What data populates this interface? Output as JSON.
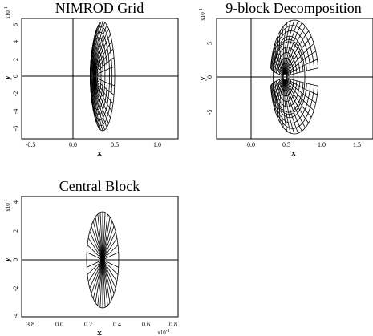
{
  "panels": [
    {
      "id": "nimrod-grid",
      "title": "NIMROD Grid",
      "xlabel": "x",
      "ylabel": "y",
      "y_exponent": "x10",
      "y_exponent_power": "-1",
      "xticks": [
        "-0.5",
        "0.0",
        "0.5",
        "1.0"
      ],
      "yticks": [
        "6",
        "4",
        "2",
        "0",
        "-2",
        "-4",
        "-6"
      ]
    },
    {
      "id": "nine-block",
      "title": "9-block Decomposition",
      "xlabel": "x",
      "ylabel": "y",
      "y_exponent": "x10",
      "y_exponent_power": "-1",
      "xticks": [
        "0.0",
        "0.5",
        "1.0",
        "1.5"
      ],
      "yticks": [
        "5",
        "0",
        "-5"
      ]
    },
    {
      "id": "central-block",
      "title": "Central Block",
      "xlabel": "x",
      "ylabel": "y",
      "y_exponent": "x10",
      "y_exponent_power": "-1",
      "x_exponent": "x10",
      "x_exponent_power": "-1",
      "xticks": [
        "0.0",
        "0.2",
        "0.4",
        "0.6",
        "0.8"
      ],
      "xtick_first": "3.8",
      "yticks": [
        "4",
        "2",
        "0",
        "-2",
        "-4"
      ]
    }
  ]
}
